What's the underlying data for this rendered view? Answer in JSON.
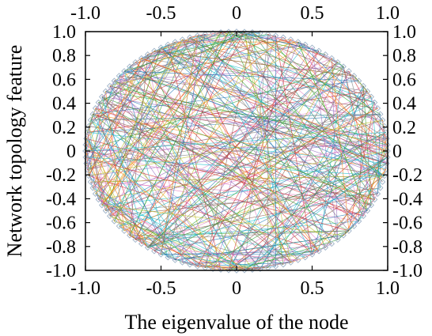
{
  "chart_data": {
    "type": "line",
    "title": "",
    "xlabel": "The eigenvalue of the node",
    "ylabel": "Network topology feature",
    "xlim": [
      -1.0,
      1.0
    ],
    "ylim": [
      -1.0,
      1.0
    ],
    "x_ticks": [
      "-1.0",
      "-0.5",
      "0",
      "0.5",
      "1.0"
    ],
    "x_tick_values": [
      -1.0,
      -0.5,
      0,
      0.5,
      1.0
    ],
    "y_ticks": [
      "1.0",
      "0.8",
      "0.6",
      "0.4",
      "0.2",
      "0",
      "-0.2",
      "-0.4",
      "-0.6",
      "-0.8",
      "-1.0"
    ],
    "y_tick_values": [
      1.0,
      0.8,
      0.6,
      0.4,
      0.2,
      0,
      -0.2,
      -0.4,
      -0.6,
      -0.8,
      -1.0
    ],
    "grid": false,
    "legend": "none",
    "nodes_on_circle": true,
    "node_count": 120,
    "chord_count": 420,
    "series_colors": [
      "#d62728",
      "#1f77b4",
      "#2ca02c",
      "#ff7f0e",
      "#9467bd",
      "#17becf",
      "#e377c2",
      "#bcbd22",
      "#8c564b",
      "#7f7f7f"
    ],
    "node_marker_color": "#9fb3c8"
  }
}
